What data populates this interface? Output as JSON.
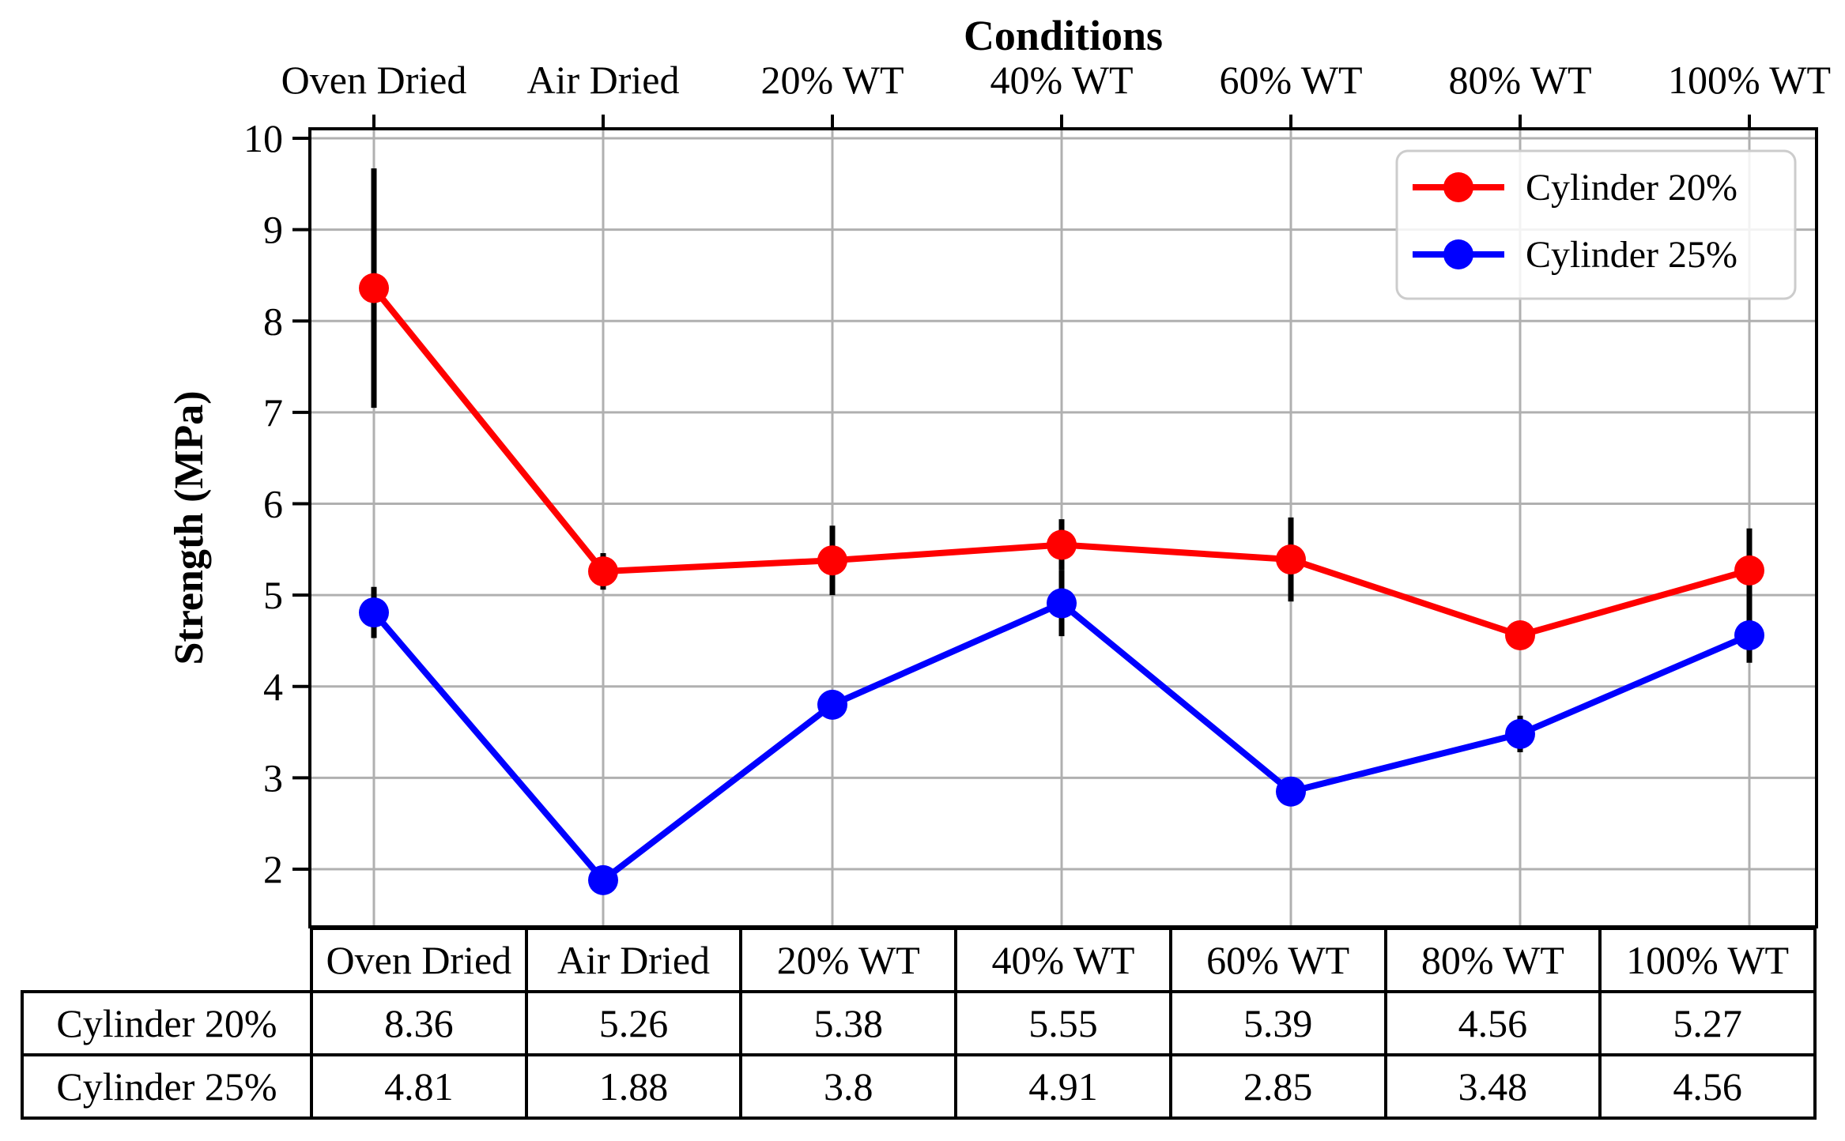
{
  "chart_data": {
    "type": "line",
    "title": "Conditions",
    "ylabel": "Strength (MPa)",
    "categories": [
      "Oven Dried",
      "Air Dried",
      "20% WT",
      "40% WT",
      "60% WT",
      "80% WT",
      "100% WT"
    ],
    "yticks": [
      2,
      3,
      4,
      5,
      6,
      7,
      8,
      9,
      10
    ],
    "ylim": [
      1.37,
      10.1
    ],
    "grid": true,
    "legend_position": "upper right",
    "series": [
      {
        "name": "Cylinder 20%",
        "color": "#ff0000",
        "values": [
          8.36,
          5.26,
          5.38,
          5.55,
          5.39,
          4.56,
          5.27
        ],
        "errors": [
          1.31,
          0.2,
          0.38,
          0.28,
          0.46,
          0.1,
          0.46
        ]
      },
      {
        "name": "Cylinder 25%",
        "color": "#0000ff",
        "values": [
          4.81,
          1.88,
          3.8,
          4.91,
          2.85,
          3.48,
          4.56
        ],
        "errors": [
          0.28,
          0.04,
          0.12,
          0.36,
          0.16,
          0.2,
          0.3
        ]
      }
    ]
  },
  "table": {
    "col_headers": [
      "Oven Dried",
      "Air Dried",
      "20% WT",
      "40% WT",
      "60% WT",
      "80% WT",
      "100% WT"
    ],
    "rows": [
      {
        "label": "Cylinder 20%",
        "values": [
          "8.36",
          "5.26",
          "5.38",
          "5.55",
          "5.39",
          "4.56",
          "5.27"
        ]
      },
      {
        "label": "Cylinder 25%",
        "values": [
          "4.81",
          "1.88",
          "3.8",
          "4.91",
          "2.85",
          "3.48",
          "4.56"
        ]
      }
    ]
  },
  "colors": {
    "series_red": "#ff0000",
    "series_blue": "#0000ff",
    "grid": "#b0b0b0",
    "axis": "#000000",
    "errorbar": "#000000",
    "legend_border": "#cccccc"
  }
}
